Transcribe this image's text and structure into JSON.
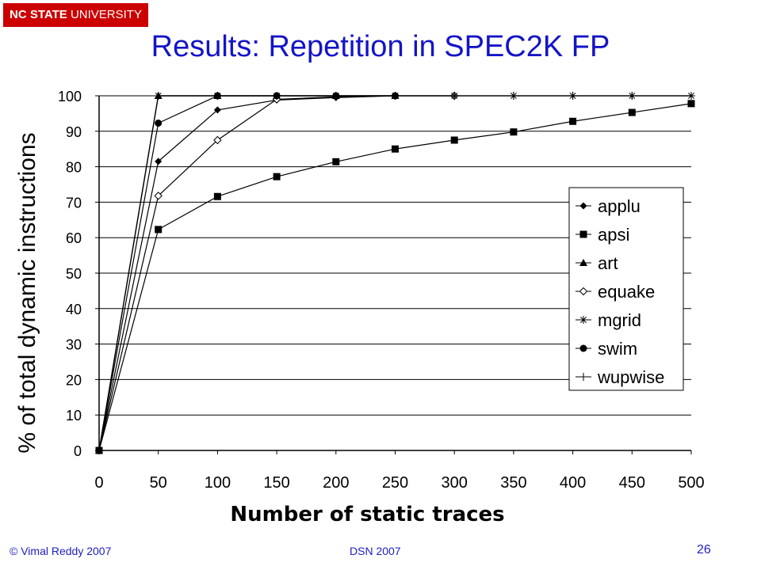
{
  "header": {
    "badge_bold": "NC STATE",
    "badge_rest": " UNIVERSITY",
    "title": "Results: Repetition in SPEC2K FP"
  },
  "footer": {
    "left": "© Vimal Reddy 2007",
    "center": "DSN 2007",
    "page": "26"
  },
  "chart_data": {
    "type": "line",
    "xlabel": "Number of static traces",
    "ylabel": "% of total dynamic instructions",
    "xlim": [
      0,
      500
    ],
    "ylim": [
      0,
      100
    ],
    "xticks": [
      0,
      50,
      100,
      150,
      200,
      250,
      300,
      350,
      400,
      450,
      500
    ],
    "yticks": [
      0,
      10,
      20,
      30,
      40,
      50,
      60,
      70,
      80,
      90,
      100
    ],
    "grid": "horizontal",
    "legend_position": "right",
    "series": [
      {
        "name": "applu",
        "marker": "diamond-filled",
        "x": [
          0,
          50,
          100,
          150,
          200,
          250
        ],
        "y": [
          0,
          81.5,
          96,
          98.8,
          99.5,
          100
        ]
      },
      {
        "name": "apsi",
        "marker": "square-filled",
        "x": [
          0,
          50,
          100,
          150,
          200,
          250,
          300,
          350,
          400,
          450,
          500
        ],
        "y": [
          0,
          62.3,
          71.6,
          77.2,
          81.4,
          85,
          87.5,
          89.8,
          92.8,
          95.3,
          97.8
        ]
      },
      {
        "name": "art",
        "marker": "triangle-filled",
        "x": [
          0,
          50,
          100,
          150,
          200,
          250
        ],
        "y": [
          0,
          100,
          100,
          100,
          100,
          100
        ]
      },
      {
        "name": "equake",
        "marker": "diamond-open",
        "x": [
          0,
          50,
          100,
          150,
          200,
          250,
          300
        ],
        "y": [
          0,
          71.8,
          87.5,
          99,
          99.7,
          100,
          100
        ]
      },
      {
        "name": "mgrid",
        "marker": "star",
        "x": [
          0,
          50,
          100,
          150,
          200,
          250,
          300,
          350,
          400,
          450,
          500
        ],
        "y": [
          0,
          100,
          100,
          100,
          100,
          100,
          100,
          100,
          100,
          100,
          100
        ]
      },
      {
        "name": "swim",
        "marker": "circle-filled",
        "x": [
          0,
          50,
          100,
          150,
          200,
          250
        ],
        "y": [
          0,
          92.3,
          100,
          100,
          100,
          100
        ]
      },
      {
        "name": "wupwise",
        "marker": "plus",
        "x": [
          0,
          50,
          100,
          150,
          200,
          250,
          300,
          350,
          400,
          450,
          500
        ],
        "y": [
          0,
          100,
          100,
          100,
          100,
          100,
          100,
          100,
          100,
          100,
          100
        ]
      }
    ]
  }
}
